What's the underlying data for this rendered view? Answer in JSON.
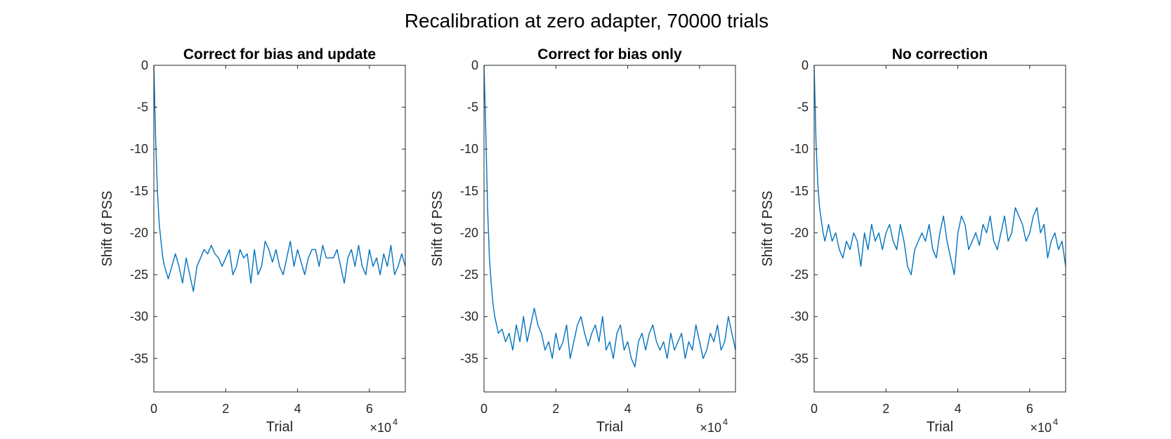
{
  "figure": {
    "suptitle": "Recalibration at zero adapter, 70000 trials",
    "line_color": "#0072BD",
    "axes_color": "#262626"
  },
  "chart_data": [
    {
      "type": "line",
      "title": "Correct for bias and update",
      "xlabel": "Trial",
      "ylabel": "Shift of PSS",
      "xlim": [
        0,
        70000
      ],
      "ylim": [
        -39,
        0
      ],
      "x_ticks": [
        0,
        20000,
        40000,
        60000
      ],
      "x_tick_labels": [
        "0",
        "2",
        "4",
        "6"
      ],
      "x_multiplier_base": "×10",
      "x_multiplier_exponent": "4",
      "y_ticks": [
        0,
        -5,
        -10,
        -15,
        -20,
        -25,
        -30,
        -35
      ],
      "y_tick_labels": [
        "0",
        "-5",
        "-10",
        "-15",
        "-20",
        "-25",
        "-30",
        "-35"
      ],
      "grid": false,
      "series": [
        {
          "x": [
            0,
            500,
            1000,
            1500,
            2000,
            2500,
            3000,
            4000,
            5000,
            6000,
            7000,
            8000,
            9000,
            10000,
            11000,
            12000,
            13000,
            14000,
            15000,
            16000,
            17000,
            18000,
            19000,
            20000,
            21000,
            22000,
            23000,
            24000,
            25000,
            26000,
            27000,
            28000,
            29000,
            30000,
            31000,
            32000,
            33000,
            34000,
            35000,
            36000,
            37000,
            38000,
            39000,
            40000,
            41000,
            42000,
            43000,
            44000,
            45000,
            46000,
            47000,
            48000,
            49000,
            50000,
            51000,
            52000,
            53000,
            54000,
            55000,
            56000,
            57000,
            58000,
            59000,
            60000,
            61000,
            62000,
            63000,
            64000,
            65000,
            66000,
            67000,
            68000,
            69000,
            70000
          ],
          "y": [
            0,
            -9,
            -15,
            -19,
            -21,
            -23,
            -24,
            -25.5,
            -24,
            -22.5,
            -24,
            -26,
            -23,
            -25,
            -27,
            -24,
            -23,
            -22,
            -22.5,
            -21.5,
            -22.5,
            -23,
            -24,
            -23,
            -22,
            -25,
            -24,
            -22,
            -23,
            -22.5,
            -26,
            -22,
            -25,
            -24,
            -21,
            -22,
            -23.5,
            -22,
            -24,
            -25,
            -23,
            -21,
            -24,
            -22,
            -23.5,
            -25,
            -23,
            -22,
            -22,
            -24,
            -21.5,
            -23,
            -23,
            -23,
            -22,
            -24,
            -26,
            -23,
            -22,
            -24,
            -21.5,
            -24,
            -25,
            -22,
            -24,
            -23,
            -25,
            -22.5,
            -24,
            -21.5,
            -25,
            -24,
            -22.5,
            -24
          ]
        }
      ]
    },
    {
      "type": "line",
      "title": "Correct for bias only",
      "xlabel": "Trial",
      "ylabel": "Shift of PSS",
      "xlim": [
        0,
        70000
      ],
      "ylim": [
        -39,
        0
      ],
      "x_ticks": [
        0,
        20000,
        40000,
        60000
      ],
      "x_tick_labels": [
        "0",
        "2",
        "4",
        "6"
      ],
      "x_multiplier_base": "×10",
      "x_multiplier_exponent": "4",
      "y_ticks": [
        0,
        -5,
        -10,
        -15,
        -20,
        -25,
        -30,
        -35
      ],
      "y_tick_labels": [
        "0",
        "-5",
        "-10",
        "-15",
        "-20",
        "-25",
        "-30",
        "-35"
      ],
      "grid": false,
      "series": [
        {
          "x": [
            0,
            500,
            1000,
            1500,
            2000,
            2500,
            3000,
            4000,
            5000,
            6000,
            7000,
            8000,
            9000,
            10000,
            11000,
            12000,
            13000,
            14000,
            15000,
            16000,
            17000,
            18000,
            19000,
            20000,
            21000,
            22000,
            23000,
            24000,
            25000,
            26000,
            27000,
            28000,
            29000,
            30000,
            31000,
            32000,
            33000,
            34000,
            35000,
            36000,
            37000,
            38000,
            39000,
            40000,
            41000,
            42000,
            43000,
            44000,
            45000,
            46000,
            47000,
            48000,
            49000,
            50000,
            51000,
            52000,
            53000,
            54000,
            55000,
            56000,
            57000,
            58000,
            59000,
            60000,
            61000,
            62000,
            63000,
            64000,
            65000,
            66000,
            67000,
            68000,
            69000,
            70000
          ],
          "y": [
            0,
            -8,
            -17,
            -23,
            -26,
            -28.5,
            -30,
            -32,
            -31.5,
            -33,
            -32,
            -34,
            -31,
            -33,
            -30,
            -33,
            -31,
            -29,
            -31,
            -32,
            -34,
            -33,
            -35,
            -32,
            -34,
            -33,
            -31,
            -35,
            -33,
            -31,
            -30,
            -32,
            -33.5,
            -32,
            -31,
            -33,
            -30,
            -34,
            -33,
            -35,
            -32,
            -31,
            -34,
            -33,
            -35,
            -36,
            -33,
            -32,
            -34,
            -32,
            -31,
            -33,
            -34,
            -33,
            -35,
            -32,
            -34,
            -33,
            -32,
            -35,
            -33,
            -34,
            -31,
            -33,
            -35,
            -34,
            -32,
            -33,
            -31,
            -34,
            -33,
            -30,
            -32,
            -34
          ]
        }
      ]
    },
    {
      "type": "line",
      "title": "No correction",
      "xlabel": "Trial",
      "ylabel": "Shift of PSS",
      "xlim": [
        0,
        70000
      ],
      "ylim": [
        -39,
        0
      ],
      "x_ticks": [
        0,
        20000,
        40000,
        60000
      ],
      "x_tick_labels": [
        "0",
        "2",
        "4",
        "6"
      ],
      "x_multiplier_base": "×10",
      "x_multiplier_exponent": "4",
      "y_ticks": [
        0,
        -5,
        -10,
        -15,
        -20,
        -25,
        -30,
        -35
      ],
      "y_tick_labels": [
        "0",
        "-5",
        "-10",
        "-15",
        "-20",
        "-25",
        "-30",
        "-35"
      ],
      "grid": false,
      "series": [
        {
          "x": [
            0,
            500,
            1000,
            1500,
            2000,
            2500,
            3000,
            4000,
            5000,
            6000,
            7000,
            8000,
            9000,
            10000,
            11000,
            12000,
            13000,
            14000,
            15000,
            16000,
            17000,
            18000,
            19000,
            20000,
            21000,
            22000,
            23000,
            24000,
            25000,
            26000,
            27000,
            28000,
            29000,
            30000,
            31000,
            32000,
            33000,
            34000,
            35000,
            36000,
            37000,
            38000,
            39000,
            40000,
            41000,
            42000,
            43000,
            44000,
            45000,
            46000,
            47000,
            48000,
            49000,
            50000,
            51000,
            52000,
            53000,
            54000,
            55000,
            56000,
            57000,
            58000,
            59000,
            60000,
            61000,
            62000,
            63000,
            64000,
            65000,
            66000,
            67000,
            68000,
            69000,
            70000
          ],
          "y": [
            0,
            -9,
            -14,
            -17,
            -18.5,
            -20,
            -21,
            -19,
            -21,
            -20,
            -22,
            -23,
            -21,
            -22,
            -20,
            -21,
            -24,
            -20,
            -22,
            -19,
            -21,
            -20,
            -22,
            -20,
            -19,
            -21,
            -22,
            -19,
            -21,
            -24,
            -25,
            -22,
            -21,
            -20,
            -21,
            -19,
            -22,
            -23,
            -20,
            -18,
            -21,
            -23,
            -25,
            -20,
            -18,
            -19,
            -22,
            -21,
            -20,
            -21.5,
            -19,
            -20,
            -18,
            -21,
            -22,
            -20,
            -18,
            -21,
            -20,
            -17,
            -18,
            -19,
            -21,
            -20,
            -18,
            -17,
            -20,
            -19,
            -23,
            -21,
            -20,
            -22,
            -21,
            -24
          ]
        }
      ]
    }
  ]
}
